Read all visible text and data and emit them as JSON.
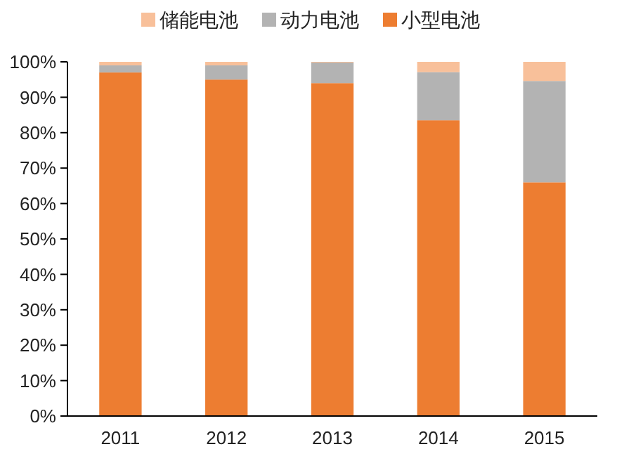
{
  "chart_data": {
    "type": "bar",
    "stacked": true,
    "categories": [
      "2011",
      "2012",
      "2013",
      "2014",
      "2015"
    ],
    "series": [
      {
        "name": "小型电池",
        "color": "#ed7d31",
        "values": [
          97,
          95,
          94,
          83.5,
          66
        ]
      },
      {
        "name": "动力电池",
        "color": "#b3b3b3",
        "values": [
          2,
          4,
          5.8,
          13.6,
          28.6
        ]
      },
      {
        "name": "储能电池",
        "color": "#f8c09a",
        "values": [
          1,
          1,
          0.2,
          2.9,
          5.4
        ]
      }
    ],
    "ylim": [
      0,
      100
    ],
    "yticks": [
      {
        "value": 0,
        "label": "0%"
      },
      {
        "value": 10,
        "label": "10%"
      },
      {
        "value": 20,
        "label": "20%"
      },
      {
        "value": 30,
        "label": "30%"
      },
      {
        "value": 40,
        "label": "40%"
      },
      {
        "value": 50,
        "label": "50%"
      },
      {
        "value": 60,
        "label": "60%"
      },
      {
        "value": 70,
        "label": "70%"
      },
      {
        "value": 80,
        "label": "80%"
      },
      {
        "value": 90,
        "label": "90%"
      },
      {
        "value": 100,
        "label": "100%"
      }
    ],
    "legend": "top"
  }
}
